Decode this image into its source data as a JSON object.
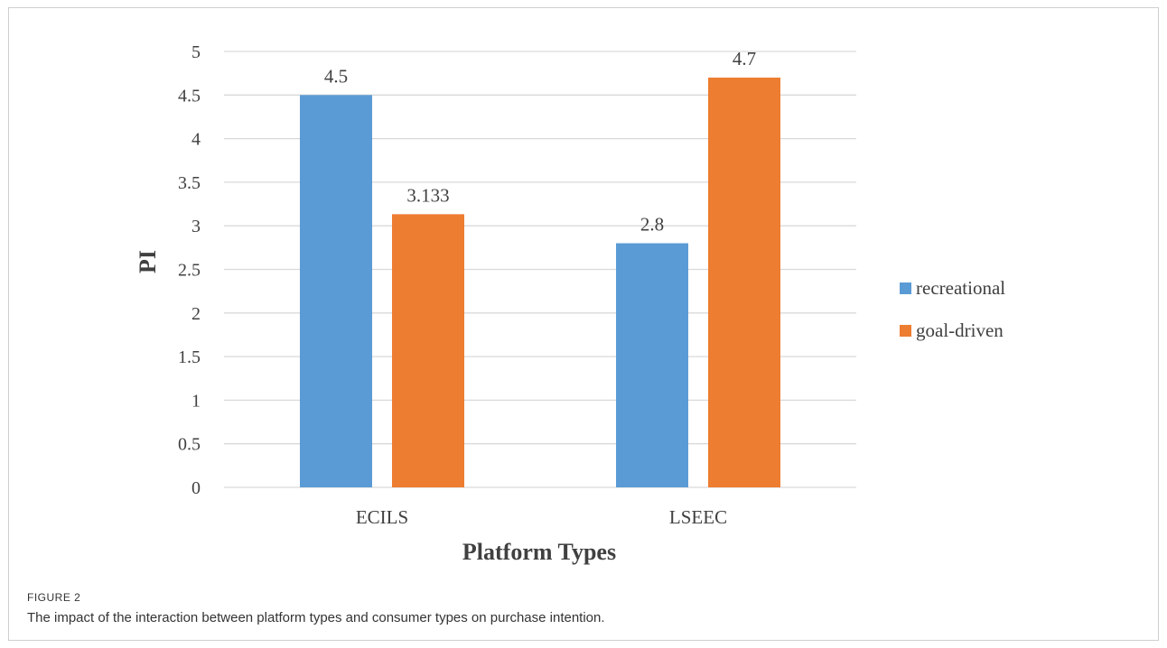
{
  "chart_data": {
    "type": "bar",
    "categories": [
      "ECILS",
      "LSEEC"
    ],
    "series": [
      {
        "name": "recreational",
        "values": [
          4.5,
          2.8
        ],
        "labels": [
          "4.5",
          "2.8"
        ],
        "color": "#5b9bd5"
      },
      {
        "name": "goal-driven",
        "values": [
          3.133,
          4.7
        ],
        "labels": [
          "3.133",
          "4.7"
        ],
        "color": "#ed7d31"
      }
    ],
    "xlabel": "Platform Types",
    "ylabel": "PI",
    "ylim": [
      0,
      5
    ],
    "yticks": [
      "0",
      "0.5",
      "1",
      "1.5",
      "2",
      "2.5",
      "3",
      "3.5",
      "4",
      "4.5",
      "5"
    ],
    "grid": true,
    "legend_position": "right"
  },
  "caption": {
    "label": "FIGURE 2",
    "text": "The impact of the interaction between platform types and consumer types on purchase intention."
  }
}
